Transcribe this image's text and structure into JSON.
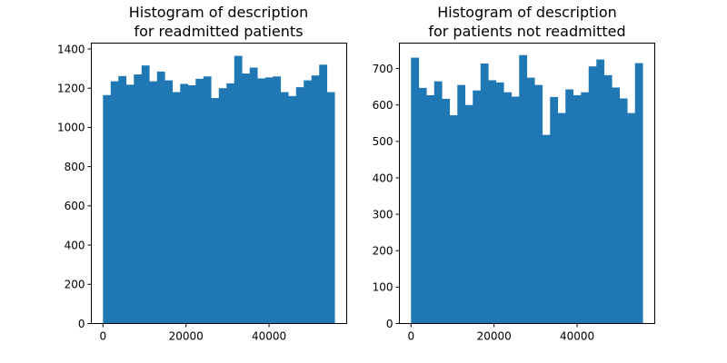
{
  "chart_data": [
    {
      "type": "bar",
      "title_lines": [
        "Histogram of description",
        "for readmitted patients"
      ],
      "xlabel": "",
      "ylabel": "",
      "xlim": [
        -2800,
        58700
      ],
      "ylim": [
        0,
        1430
      ],
      "xticks": [
        0,
        20000,
        40000
      ],
      "xtick_labels": [
        "0",
        "20000",
        "40000"
      ],
      "yticks": [
        0,
        200,
        400,
        600,
        800,
        1000,
        1200,
        1400
      ],
      "ytick_labels": [
        "0",
        "200",
        "400",
        "600",
        "800",
        "1000",
        "1200",
        "1400"
      ],
      "bin_start": 0,
      "bin_width": 1860,
      "values": [
        1165,
        1235,
        1262,
        1218,
        1270,
        1316,
        1235,
        1285,
        1240,
        1180,
        1222,
        1215,
        1248,
        1260,
        1150,
        1200,
        1225,
        1365,
        1275,
        1305,
        1250,
        1255,
        1260,
        1180,
        1160,
        1205,
        1240,
        1265,
        1320,
        1180
      ],
      "color": "#1f77b4",
      "grid": false
    },
    {
      "type": "bar",
      "title_lines": [
        "Histogram of description",
        "for patients not readmitted"
      ],
      "xlabel": "",
      "ylabel": "",
      "xlim": [
        -2800,
        58700
      ],
      "ylim": [
        0,
        770
      ],
      "xticks": [
        0,
        20000,
        40000
      ],
      "xtick_labels": [
        "0",
        "20000",
        "40000"
      ],
      "yticks": [
        0,
        100,
        200,
        300,
        400,
        500,
        600,
        700
      ],
      "ytick_labels": [
        "0",
        "100",
        "200",
        "300",
        "400",
        "500",
        "600",
        "700"
      ],
      "bin_start": 0,
      "bin_width": 1860,
      "values": [
        730,
        647,
        627,
        665,
        617,
        572,
        655,
        600,
        640,
        714,
        668,
        662,
        635,
        623,
        737,
        675,
        655,
        518,
        622,
        578,
        643,
        627,
        635,
        706,
        725,
        682,
        648,
        618,
        578,
        715
      ],
      "color": "#1f77b4",
      "grid": false
    }
  ]
}
